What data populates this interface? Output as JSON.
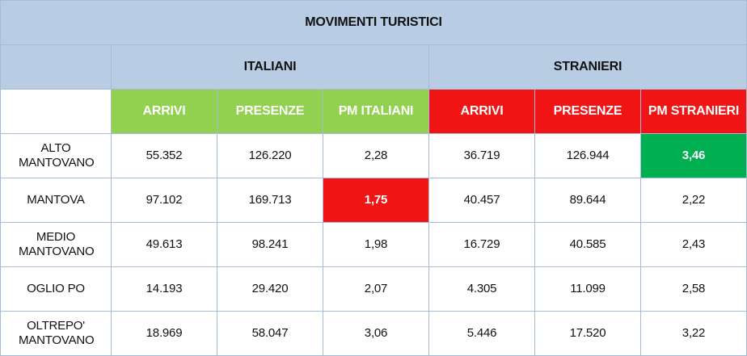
{
  "table": {
    "title": "MOVIMENTI TURISTICI",
    "groups": [
      "ITALIANI",
      "STRANIERI"
    ],
    "columns": [
      "ARRIVI",
      "PRESENZE",
      "PM ITALIANI",
      "ARRIVI",
      "PRESENZE",
      "PM STRANIERI"
    ],
    "rows": [
      [
        "ALTO MANTOVANO",
        "55.352",
        "126.220",
        "2,28",
        "36.719",
        "126.944",
        "3,46"
      ],
      [
        "MANTOVA",
        "97.102",
        "169.713",
        "1,75",
        "40.457",
        "89.644",
        "2,22"
      ],
      [
        "MEDIO MANTOVANO",
        "49.613",
        "98.241",
        "1,98",
        "16.729",
        "40.585",
        "2,43"
      ],
      [
        "OGLIO PO",
        "14.193",
        "29.420",
        "2,07",
        "4.305",
        "11.099",
        "2,58"
      ],
      [
        "OLTREPO' MANTOVANO",
        "18.969",
        "58.047",
        "3,06",
        "5.446",
        "17.520",
        "3,22"
      ]
    ]
  }
}
